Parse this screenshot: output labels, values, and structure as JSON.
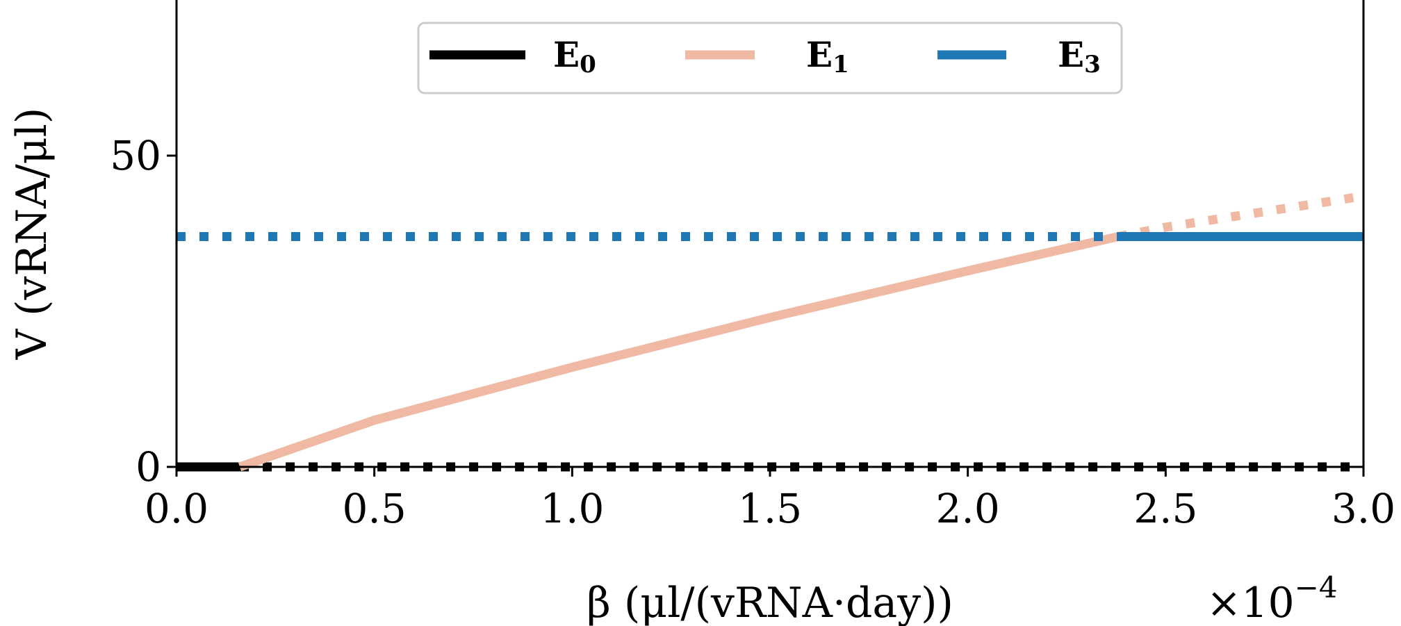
{
  "chart_data": {
    "type": "line",
    "xlabel": "β (μl/(vRNA·day))",
    "ylabel": "V (vRNA/μl)",
    "x_multiplier_label": "×10",
    "x_multiplier_exponent": "−4",
    "xlim": [
      0.0,
      3.0
    ],
    "ylim": [
      0,
      75
    ],
    "x_ticks": [
      0.0,
      0.5,
      1.0,
      1.5,
      2.0,
      2.5,
      3.0
    ],
    "x_tick_labels": [
      "0.0",
      "0.5",
      "1.0",
      "1.5",
      "2.0",
      "2.5",
      "3.0"
    ],
    "y_ticks": [
      0,
      50
    ],
    "y_tick_labels": [
      "0",
      "50"
    ],
    "legend_position": "top-center",
    "grid": false,
    "series": [
      {
        "name": "E",
        "subscript": "0",
        "color": "#000000",
        "segments": [
          {
            "style": "solid",
            "x": [
              0.0,
              0.16
            ],
            "y": [
              0,
              0
            ]
          },
          {
            "style": "dotted",
            "x": [
              0.16,
              3.0
            ],
            "y": [
              0,
              0
            ]
          }
        ]
      },
      {
        "name": "E",
        "subscript": "1",
        "color": "#f0b9a3",
        "segments": [
          {
            "style": "solid",
            "x": [
              0.16,
              0.5,
              1.0,
              1.5,
              2.0,
              2.38
            ],
            "y": [
              0,
              7.5,
              16.0,
              24.0,
              31.5,
              37.0
            ]
          },
          {
            "style": "dotted",
            "x": [
              2.38,
              2.5,
              2.75,
              3.0
            ],
            "y": [
              37.0,
              38.5,
              41.0,
              43.5
            ]
          }
        ]
      },
      {
        "name": "E",
        "subscript": "3",
        "color": "#1f77b4",
        "segments": [
          {
            "style": "dotted",
            "x": [
              0.0,
              2.38
            ],
            "y": [
              37.0,
              37.0
            ]
          },
          {
            "style": "solid",
            "x": [
              2.38,
              3.0
            ],
            "y": [
              37.0,
              37.0
            ]
          }
        ]
      }
    ]
  }
}
